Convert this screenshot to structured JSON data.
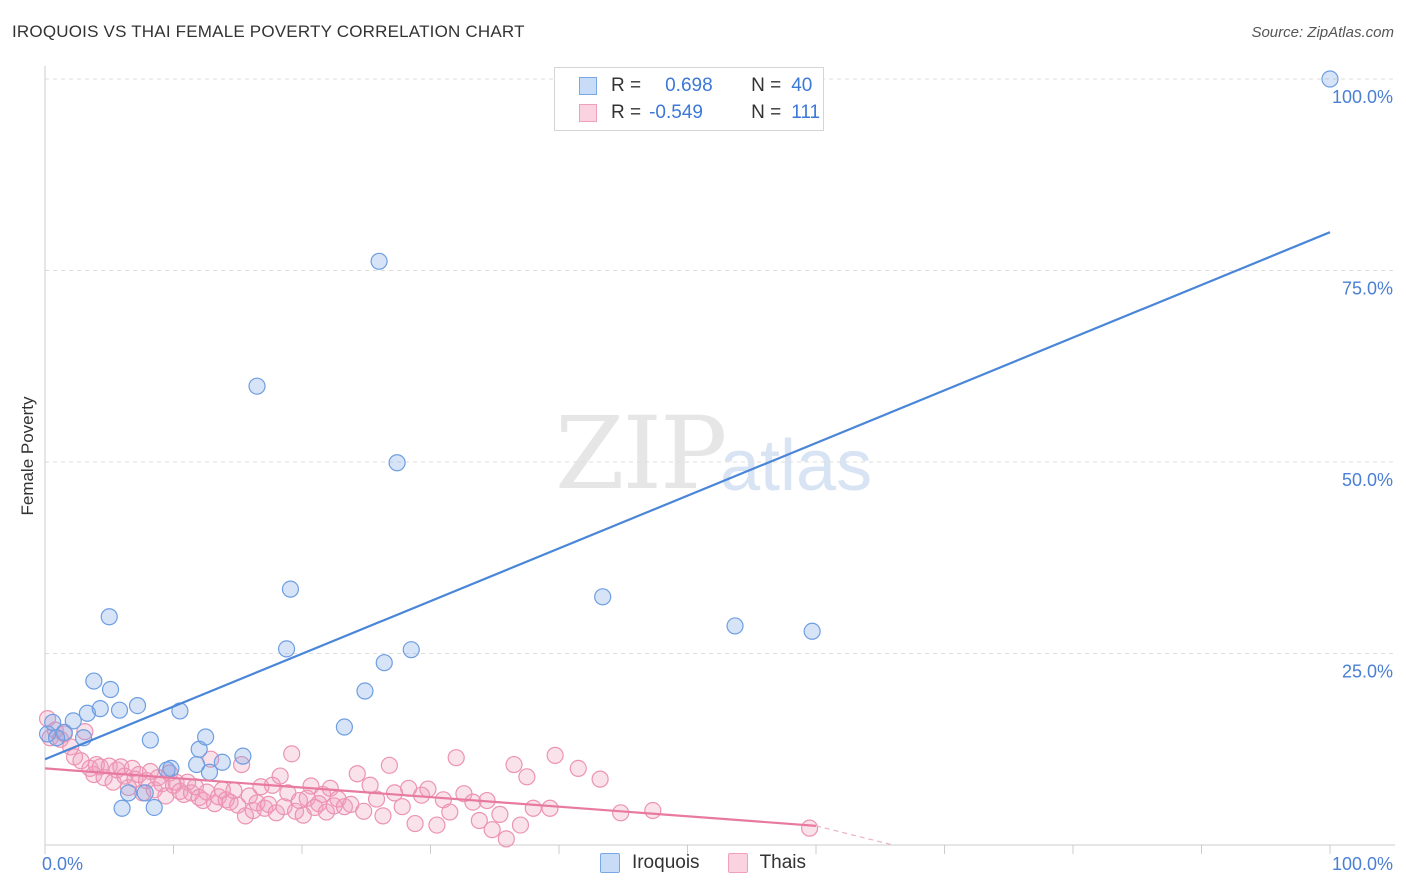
{
  "header": {
    "title": "IROQUOIS VS THAI FEMALE POVERTY CORRELATION CHART",
    "source": "Source: ZipAtlas.com"
  },
  "watermark": {
    "zip": "ZIP",
    "atlas": "atlas"
  },
  "stats": {
    "rows": [
      {
        "r_label": "R =",
        "r_value": "0.698",
        "n_label": "N =",
        "n_value": "40",
        "color": "#7aa7e8"
      },
      {
        "r_label": "R =",
        "r_value": "-0.549",
        "n_label": "N =",
        "n_value": "111",
        "color": "#f0a0bc"
      }
    ]
  },
  "legend": {
    "items": [
      {
        "label": "Iroquois",
        "color": "#7aa7e8"
      },
      {
        "label": "Thais",
        "color": "#f0a0bc"
      }
    ]
  },
  "chart_data": {
    "type": "scatter",
    "ylabel": "Female Poverty",
    "xlim": [
      0,
      100
    ],
    "ylim": [
      0,
      100
    ],
    "x_tick_labels": [
      "0.0%",
      "100.0%"
    ],
    "y_tick_labels": [
      "25.0%",
      "50.0%",
      "75.0%",
      "100.0%"
    ],
    "y_ticks": [
      25,
      50,
      75,
      100
    ],
    "colors": {
      "iroquois": "#4a86d8",
      "thais": "#e87aa0",
      "tick_text": "#4a7fd4"
    },
    "series": [
      {
        "name": "Iroquois",
        "trend": {
          "x": [
            0,
            100
          ],
          "y": [
            11.2,
            80.0
          ]
        },
        "points": [
          [
            0.2,
            14.5
          ],
          [
            0.6,
            16.0
          ],
          [
            1.5,
            14.7
          ],
          [
            2.2,
            16.2
          ],
          [
            3.0,
            14.0
          ],
          [
            3.3,
            17.2
          ],
          [
            3.8,
            21.4
          ],
          [
            4.3,
            17.8
          ],
          [
            5.0,
            29.8
          ],
          [
            5.1,
            20.3
          ],
          [
            5.8,
            17.6
          ],
          [
            6.0,
            4.8
          ],
          [
            6.5,
            6.8
          ],
          [
            7.2,
            18.2
          ],
          [
            7.8,
            6.8
          ],
          [
            8.2,
            13.7
          ],
          [
            8.5,
            4.9
          ],
          [
            9.5,
            9.8
          ],
          [
            9.8,
            10.0
          ],
          [
            10.5,
            17.5
          ],
          [
            11.8,
            10.5
          ],
          [
            12.0,
            12.5
          ],
          [
            12.5,
            14.1
          ],
          [
            12.8,
            9.5
          ],
          [
            13.8,
            10.8
          ],
          [
            15.4,
            11.6
          ],
          [
            16.5,
            59.9
          ],
          [
            18.8,
            25.6
          ],
          [
            19.1,
            33.4
          ],
          [
            23.3,
            15.4
          ],
          [
            24.9,
            20.1
          ],
          [
            26.0,
            76.2
          ],
          [
            26.4,
            23.8
          ],
          [
            27.4,
            49.9
          ],
          [
            28.5,
            25.5
          ],
          [
            43.4,
            32.4
          ],
          [
            53.7,
            28.6
          ],
          [
            59.7,
            27.9
          ],
          [
            100.0,
            100.0
          ],
          [
            0.9,
            14.0
          ]
        ]
      },
      {
        "name": "Thais",
        "trend": {
          "x": [
            0,
            60
          ],
          "y": [
            10.0,
            2.5
          ],
          "dashed_extension": {
            "x": [
              60,
              100
            ],
            "y": [
              2.5,
              -2.5
            ]
          }
        },
        "points": [
          [
            0.2,
            16.5
          ],
          [
            0.4,
            14.0
          ],
          [
            0.8,
            15.0
          ],
          [
            1.2,
            13.8
          ],
          [
            1.5,
            14.5
          ],
          [
            2.0,
            12.8
          ],
          [
            2.3,
            11.5
          ],
          [
            2.8,
            11.0
          ],
          [
            3.1,
            14.8
          ],
          [
            3.5,
            10.0
          ],
          [
            3.8,
            9.2
          ],
          [
            4.0,
            10.5
          ],
          [
            4.3,
            10.2
          ],
          [
            4.6,
            8.8
          ],
          [
            5.0,
            10.3
          ],
          [
            5.3,
            8.2
          ],
          [
            5.6,
            9.8
          ],
          [
            5.9,
            10.2
          ],
          [
            6.2,
            9.0
          ],
          [
            6.5,
            7.5
          ],
          [
            6.8,
            10.0
          ],
          [
            7.0,
            8.6
          ],
          [
            7.3,
            9.2
          ],
          [
            7.6,
            6.8
          ],
          [
            7.9,
            8.4
          ],
          [
            8.2,
            9.6
          ],
          [
            8.5,
            7.2
          ],
          [
            8.8,
            8.8
          ],
          [
            9.1,
            8.0
          ],
          [
            9.4,
            6.4
          ],
          [
            9.7,
            9.4
          ],
          [
            10.0,
            7.8
          ],
          [
            10.2,
            8.2
          ],
          [
            10.5,
            7.0
          ],
          [
            10.8,
            6.6
          ],
          [
            11.1,
            8.2
          ],
          [
            11.4,
            6.8
          ],
          [
            11.7,
            7.6
          ],
          [
            12.0,
            6.2
          ],
          [
            12.3,
            5.8
          ],
          [
            12.6,
            6.9
          ],
          [
            12.9,
            11.2
          ],
          [
            13.2,
            5.4
          ],
          [
            13.5,
            6.3
          ],
          [
            13.8,
            7.2
          ],
          [
            14.1,
            5.9
          ],
          [
            14.4,
            5.6
          ],
          [
            14.7,
            7.1
          ],
          [
            15.0,
            5.2
          ],
          [
            15.3,
            10.5
          ],
          [
            15.6,
            3.8
          ],
          [
            15.9,
            6.4
          ],
          [
            16.2,
            4.5
          ],
          [
            16.5,
            5.5
          ],
          [
            16.8,
            7.6
          ],
          [
            17.1,
            4.8
          ],
          [
            17.4,
            5.3
          ],
          [
            17.7,
            7.8
          ],
          [
            18.0,
            4.2
          ],
          [
            18.3,
            9.0
          ],
          [
            18.6,
            5.0
          ],
          [
            18.9,
            6.8
          ],
          [
            19.2,
            11.9
          ],
          [
            19.5,
            4.4
          ],
          [
            19.8,
            5.8
          ],
          [
            20.1,
            3.9
          ],
          [
            20.4,
            6.1
          ],
          [
            20.7,
            7.7
          ],
          [
            21.0,
            4.9
          ],
          [
            21.3,
            5.4
          ],
          [
            21.6,
            6.6
          ],
          [
            21.9,
            4.3
          ],
          [
            22.2,
            7.4
          ],
          [
            22.5,
            5.1
          ],
          [
            22.8,
            6.0
          ],
          [
            23.3,
            5.0
          ],
          [
            23.8,
            5.3
          ],
          [
            24.3,
            9.3
          ],
          [
            24.8,
            4.4
          ],
          [
            25.3,
            7.8
          ],
          [
            25.8,
            6.0
          ],
          [
            26.3,
            3.8
          ],
          [
            26.8,
            10.4
          ],
          [
            27.2,
            6.8
          ],
          [
            27.8,
            5.0
          ],
          [
            28.3,
            7.4
          ],
          [
            28.8,
            2.8
          ],
          [
            29.3,
            6.5
          ],
          [
            29.8,
            7.3
          ],
          [
            30.5,
            2.6
          ],
          [
            31.0,
            5.9
          ],
          [
            31.5,
            4.3
          ],
          [
            32.0,
            11.4
          ],
          [
            32.6,
            6.7
          ],
          [
            33.3,
            5.6
          ],
          [
            33.8,
            3.2
          ],
          [
            34.4,
            5.8
          ],
          [
            34.8,
            2.0
          ],
          [
            35.4,
            4.0
          ],
          [
            35.9,
            0.8
          ],
          [
            36.5,
            10.5
          ],
          [
            37.0,
            2.6
          ],
          [
            37.5,
            8.9
          ],
          [
            38.0,
            4.8
          ],
          [
            39.3,
            4.8
          ],
          [
            39.7,
            11.7
          ],
          [
            41.5,
            10.0
          ],
          [
            43.2,
            8.6
          ],
          [
            44.8,
            4.2
          ],
          [
            47.3,
            4.5
          ],
          [
            59.5,
            2.2
          ]
        ]
      }
    ]
  }
}
